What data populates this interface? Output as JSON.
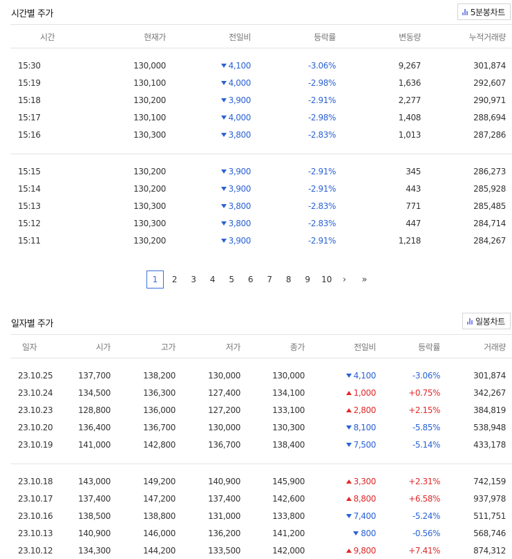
{
  "timeSection": {
    "title": "시간별 주가",
    "chart_button": "5분봉차트",
    "headers": [
      "시간",
      "현재가",
      "전일비",
      "등락률",
      "변동량",
      "누적거래량"
    ],
    "groups": [
      [
        {
          "time": "15:30",
          "price": "130,000",
          "change": "4,100",
          "dir": "down",
          "rate": "-3.06%",
          "vol": "9,267",
          "cum": "301,874"
        },
        {
          "time": "15:19",
          "price": "130,100",
          "change": "4,000",
          "dir": "down",
          "rate": "-2.98%",
          "vol": "1,636",
          "cum": "292,607"
        },
        {
          "time": "15:18",
          "price": "130,200",
          "change": "3,900",
          "dir": "down",
          "rate": "-2.91%",
          "vol": "2,277",
          "cum": "290,971"
        },
        {
          "time": "15:17",
          "price": "130,100",
          "change": "4,000",
          "dir": "down",
          "rate": "-2.98%",
          "vol": "1,408",
          "cum": "288,694"
        },
        {
          "time": "15:16",
          "price": "130,300",
          "change": "3,800",
          "dir": "down",
          "rate": "-2.83%",
          "vol": "1,013",
          "cum": "287,286"
        }
      ],
      [
        {
          "time": "15:15",
          "price": "130,200",
          "change": "3,900",
          "dir": "down",
          "rate": "-2.91%",
          "vol": "345",
          "cum": "286,273"
        },
        {
          "time": "15:14",
          "price": "130,200",
          "change": "3,900",
          "dir": "down",
          "rate": "-2.91%",
          "vol": "443",
          "cum": "285,928"
        },
        {
          "time": "15:13",
          "price": "130,300",
          "change": "3,800",
          "dir": "down",
          "rate": "-2.83%",
          "vol": "771",
          "cum": "285,485"
        },
        {
          "time": "15:12",
          "price": "130,300",
          "change": "3,800",
          "dir": "down",
          "rate": "-2.83%",
          "vol": "447",
          "cum": "284,714"
        },
        {
          "time": "15:11",
          "price": "130,200",
          "change": "3,900",
          "dir": "down",
          "rate": "-2.91%",
          "vol": "1,218",
          "cum": "284,267"
        }
      ]
    ]
  },
  "pagination": {
    "pages": [
      "1",
      "2",
      "3",
      "4",
      "5",
      "6",
      "7",
      "8",
      "9",
      "10"
    ],
    "active": "1",
    "next": "›",
    "last": "»"
  },
  "dailySection": {
    "title": "일자별 주가",
    "chart_button": "일봉차트",
    "headers": [
      "일자",
      "시가",
      "고가",
      "저가",
      "종가",
      "전일비",
      "등락률",
      "거래량"
    ],
    "groups": [
      [
        {
          "date": "23.10.25",
          "open": "137,700",
          "high": "138,200",
          "low": "130,000",
          "close": "130,000",
          "change": "4,100",
          "dir": "down",
          "rate": "-3.06%",
          "vol": "301,874"
        },
        {
          "date": "23.10.24",
          "open": "134,500",
          "high": "136,300",
          "low": "127,400",
          "close": "134,100",
          "change": "1,000",
          "dir": "up",
          "rate": "+0.75%",
          "vol": "342,267"
        },
        {
          "date": "23.10.23",
          "open": "128,800",
          "high": "136,000",
          "low": "127,200",
          "close": "133,100",
          "change": "2,800",
          "dir": "up",
          "rate": "+2.15%",
          "vol": "384,819"
        },
        {
          "date": "23.10.20",
          "open": "136,400",
          "high": "136,700",
          "low": "130,000",
          "close": "130,300",
          "change": "8,100",
          "dir": "down",
          "rate": "-5.85%",
          "vol": "538,948"
        },
        {
          "date": "23.10.19",
          "open": "141,000",
          "high": "142,800",
          "low": "136,700",
          "close": "138,400",
          "change": "7,500",
          "dir": "down",
          "rate": "-5.14%",
          "vol": "433,178"
        }
      ],
      [
        {
          "date": "23.10.18",
          "open": "143,000",
          "high": "149,200",
          "low": "140,900",
          "close": "145,900",
          "change": "3,300",
          "dir": "up",
          "rate": "+2.31%",
          "vol": "742,159"
        },
        {
          "date": "23.10.17",
          "open": "137,400",
          "high": "147,200",
          "low": "137,400",
          "close": "142,600",
          "change": "8,800",
          "dir": "up",
          "rate": "+6.58%",
          "vol": "937,978"
        },
        {
          "date": "23.10.16",
          "open": "138,500",
          "high": "138,800",
          "low": "131,000",
          "close": "133,800",
          "change": "7,400",
          "dir": "down",
          "rate": "-5.24%",
          "vol": "511,751"
        },
        {
          "date": "23.10.13",
          "open": "140,900",
          "high": "146,000",
          "low": "136,200",
          "close": "141,200",
          "change": "800",
          "dir": "down",
          "rate": "-0.56%",
          "vol": "568,746"
        },
        {
          "date": "23.10.12",
          "open": "134,300",
          "high": "144,200",
          "low": "133,500",
          "close": "142,000",
          "change": "9,800",
          "dir": "up",
          "rate": "+7.41%",
          "vol": "874,312"
        }
      ]
    ]
  },
  "colors": {
    "down": "#2a62d4",
    "up": "#e0282a",
    "accent": "#3a6ee0",
    "chart_icon": "#7a86e8"
  }
}
